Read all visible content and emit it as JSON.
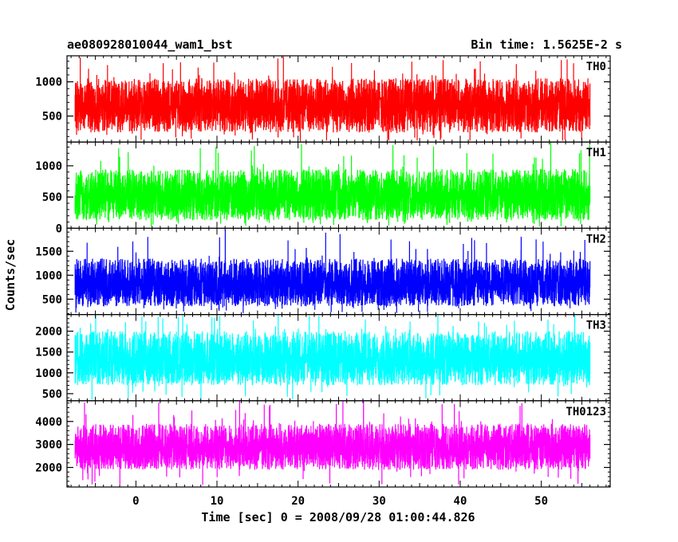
{
  "chart_data": {
    "type": "line",
    "title": "ae080928010044_wam1_bst",
    "subtitle": "Bin time: 1.5625E-2 s",
    "xlabel": "Time [sec] 0 = 2008/09/28 01:00:44.826",
    "ylabel": "Counts/sec",
    "xlim": [
      -8.5,
      58.5
    ],
    "x_ticks": [
      0,
      10,
      20,
      30,
      40,
      50
    ],
    "x_data_range": [
      -7.5,
      56
    ],
    "bin_time": 0.015625,
    "grid": false,
    "series": [
      {
        "name": "TH0",
        "color": "#ff0000",
        "ylim": [
          120,
          1380
        ],
        "y_ticks": [
          500,
          1000
        ],
        "mean": 640,
        "typical_range": [
          260,
          1050
        ],
        "extremes": [
          130,
          1380
        ]
      },
      {
        "name": "TH1",
        "color": "#00ff00",
        "ylim": [
          0,
          1380
        ],
        "y_ticks": [
          0,
          500,
          1000
        ],
        "mean": 520,
        "typical_range": [
          130,
          950
        ],
        "extremes": [
          30,
          1380
        ]
      },
      {
        "name": "TH2",
        "color": "#0000ff",
        "ylim": [
          180,
          1980
        ],
        "y_ticks": [
          500,
          1000,
          1500
        ],
        "mean": 800,
        "typical_range": [
          350,
          1350
        ],
        "extremes": [
          200,
          1980
        ]
      },
      {
        "name": "TH3",
        "color": "#00ffff",
        "ylim": [
          330,
          2400
        ],
        "y_ticks": [
          500,
          1000,
          1500,
          2000
        ],
        "mean": 1300,
        "typical_range": [
          700,
          2000
        ],
        "extremes": [
          350,
          2400
        ]
      },
      {
        "name": "TH0123",
        "color": "#ff00ff",
        "ylim": [
          1150,
          4900
        ],
        "y_ticks": [
          2000,
          3000,
          4000
        ],
        "mean": 2800,
        "typical_range": [
          1900,
          3900
        ],
        "extremes": [
          1200,
          4900
        ]
      }
    ]
  }
}
